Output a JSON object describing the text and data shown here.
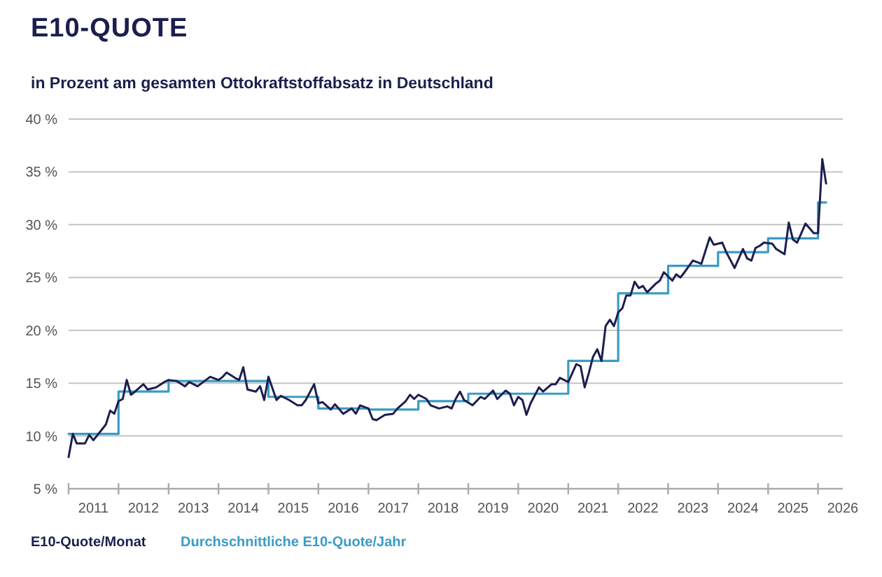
{
  "chart_data": {
    "type": "line",
    "title": "E10-QUOTE",
    "subtitle": "in Prozent am gesamten Ottokraftstoffabsatz in Deutschland",
    "xlim": [
      "2011-01",
      "2026-07"
    ],
    "xticks": [
      {
        "value": "2011-01",
        "label": null
      },
      {
        "value": "2011-07",
        "label": "2011"
      },
      {
        "value": "2012-01",
        "label": null
      },
      {
        "value": "2012-07",
        "label": "2012"
      },
      {
        "value": "2013-01",
        "label": null
      },
      {
        "value": "2013-07",
        "label": "2013"
      },
      {
        "value": "2014-01",
        "label": null
      },
      {
        "value": "2014-07",
        "label": "2014"
      },
      {
        "value": "2015-01",
        "label": null
      },
      {
        "value": "2015-07",
        "label": "2015"
      },
      {
        "value": "2016-01",
        "label": null
      },
      {
        "value": "2016-07",
        "label": "2016"
      },
      {
        "value": "2017-01",
        "label": null
      },
      {
        "value": "2017-07",
        "label": "2017"
      },
      {
        "value": "2018-01",
        "label": null
      },
      {
        "value": "2018-07",
        "label": "2018"
      },
      {
        "value": "2019-01",
        "label": null
      },
      {
        "value": "2019-07",
        "label": "2019"
      },
      {
        "value": "2020-01",
        "label": null
      },
      {
        "value": "2020-07",
        "label": "2020"
      },
      {
        "value": "2021-01",
        "label": null
      },
      {
        "value": "2021-07",
        "label": "2021"
      },
      {
        "value": "2022-01",
        "label": null
      },
      {
        "value": "2022-07",
        "label": "2022"
      },
      {
        "value": "2023-01",
        "label": null
      },
      {
        "value": "2023-07",
        "label": "2023"
      },
      {
        "value": "2024-01",
        "label": null
      },
      {
        "value": "2024-07",
        "label": "2024"
      },
      {
        "value": "2025-01",
        "label": null
      },
      {
        "value": "2025-07",
        "label": "2025"
      },
      {
        "value": "2026-01",
        "label": null
      },
      {
        "value": "2026-07",
        "label": "2026"
      }
    ],
    "ylim": [
      5,
      40
    ],
    "yticks": [
      {
        "value": 5,
        "label": "5 %"
      },
      {
        "value": 10,
        "label": "10 %"
      },
      {
        "value": 15,
        "label": "15 %"
      },
      {
        "value": 20,
        "label": "20 %"
      },
      {
        "value": 25,
        "label": "25 %"
      },
      {
        "value": 30,
        "label": "30 %"
      },
      {
        "value": 35,
        "label": "35 %"
      },
      {
        "value": 40,
        "label": "40 %"
      }
    ],
    "grid": "y",
    "legend": "bottom",
    "series": [
      {
        "name": "E10-Quote/Monat",
        "color": "#1c1e4e",
        "x": [
          "2011-01",
          "2011-02",
          "2011-03",
          "2011-05",
          "2011-06",
          "2011-07",
          "2011-09",
          "2011-10",
          "2011-11",
          "2011-12",
          "2012-01",
          "2012-02",
          "2012-03",
          "2012-04",
          "2012-05",
          "2012-07",
          "2012-08",
          "2012-10",
          "2012-12",
          "2013-01",
          "2013-03",
          "2013-05",
          "2013-06",
          "2013-08",
          "2013-10",
          "2013-11",
          "2014-01",
          "2014-02",
          "2014-03",
          "2014-05",
          "2014-06",
          "2014-07",
          "2014-08",
          "2014-10",
          "2014-11",
          "2014-12",
          "2015-01",
          "2015-03",
          "2015-04",
          "2015-06",
          "2015-08",
          "2015-09",
          "2015-10",
          "2015-12",
          "2016-01",
          "2016-02",
          "2016-04",
          "2016-05",
          "2016-07",
          "2016-09",
          "2016-10",
          "2016-11",
          "2017-01",
          "2017-02",
          "2017-03",
          "2017-05",
          "2017-07",
          "2017-08",
          "2017-10",
          "2017-11",
          "2017-12",
          "2018-01",
          "2018-03",
          "2018-04",
          "2018-06",
          "2018-08",
          "2018-09",
          "2018-10",
          "2018-11",
          "2018-12",
          "2019-02",
          "2019-04",
          "2019-05",
          "2019-07",
          "2019-08",
          "2019-10",
          "2019-11",
          "2019-12",
          "2020-01",
          "2020-02",
          "2020-03",
          "2020-04",
          "2020-06",
          "2020-07",
          "2020-09",
          "2020-10",
          "2020-11",
          "2021-01",
          "2021-02",
          "2021-03",
          "2021-04",
          "2021-05",
          "2021-06",
          "2021-07",
          "2021-08",
          "2021-09",
          "2021-10",
          "2021-11",
          "2021-12",
          "2022-01",
          "2022-02",
          "2022-03",
          "2022-04",
          "2022-05",
          "2022-06",
          "2022-07",
          "2022-08",
          "2022-10",
          "2022-11",
          "2022-12",
          "2023-02",
          "2023-03",
          "2023-04",
          "2023-05",
          "2023-07",
          "2023-09",
          "2023-11",
          "2023-12",
          "2024-02",
          "2024-03",
          "2024-05",
          "2024-07",
          "2024-08",
          "2024-09",
          "2024-10",
          "2024-11",
          "2024-12",
          "2025-02",
          "2025-03",
          "2025-05",
          "2025-06",
          "2025-07",
          "2025-08",
          "2025-09",
          "2025-10",
          "2025-12",
          "2026-01",
          "2026-02",
          "2026-03"
        ],
        "values": [
          8.0,
          10.2,
          9.3,
          9.3,
          10.1,
          9.6,
          10.6,
          11.1,
          12.4,
          12.1,
          13.3,
          13.5,
          15.3,
          13.9,
          14.2,
          14.9,
          14.4,
          14.6,
          15.1,
          15.3,
          15.2,
          14.7,
          15.1,
          14.7,
          15.3,
          15.6,
          15.3,
          15.6,
          16.0,
          15.5,
          15.3,
          16.5,
          14.4,
          14.2,
          14.7,
          13.4,
          15.6,
          13.4,
          13.8,
          13.4,
          12.9,
          12.9,
          13.4,
          14.9,
          13.1,
          13.2,
          12.5,
          13.0,
          12.1,
          12.6,
          12.1,
          12.9,
          12.6,
          11.6,
          11.5,
          12.0,
          12.1,
          12.6,
          13.3,
          13.9,
          13.5,
          13.9,
          13.5,
          12.9,
          12.6,
          12.8,
          12.6,
          13.5,
          14.2,
          13.4,
          12.9,
          13.7,
          13.5,
          14.3,
          13.5,
          14.3,
          14.0,
          12.9,
          13.7,
          13.4,
          12.0,
          13.1,
          14.6,
          14.2,
          14.9,
          14.9,
          15.5,
          15.1,
          16.0,
          16.8,
          16.6,
          14.6,
          16.0,
          17.5,
          18.2,
          17.1,
          20.4,
          21.0,
          20.4,
          21.7,
          22.1,
          23.3,
          23.3,
          24.6,
          24.0,
          24.2,
          23.6,
          24.4,
          24.7,
          25.5,
          24.7,
          25.3,
          25.0,
          25.5,
          26.6,
          26.3,
          28.8,
          28.1,
          28.3,
          27.4,
          25.9,
          27.7,
          26.8,
          26.6,
          27.8,
          28.0,
          28.3,
          28.2,
          27.7,
          27.2,
          30.2,
          28.6,
          28.3,
          29.2,
          30.1,
          29.2,
          29.2,
          36.2,
          33.9
        ]
      },
      {
        "name": "Durchschnittliche E10-Quote/Jahr",
        "type": "step",
        "color": "#3a9cc4",
        "x": [
          "2011",
          "2012",
          "2013",
          "2014",
          "2015",
          "2016",
          "2017",
          "2018",
          "2019",
          "2020",
          "2021",
          "2022",
          "2023",
          "2024",
          "2025",
          "2026",
          "2026-03"
        ],
        "values": [
          10.2,
          14.2,
          15.2,
          15.2,
          13.7,
          12.6,
          12.5,
          13.3,
          14.0,
          14.0,
          17.1,
          23.5,
          26.1,
          27.4,
          28.7,
          32.1,
          32.1
        ]
      }
    ]
  }
}
